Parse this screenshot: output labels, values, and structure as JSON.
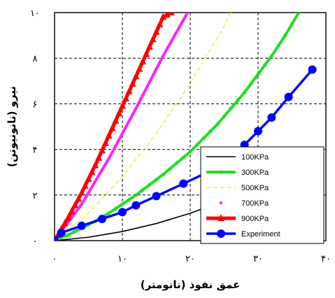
{
  "chart_data": {
    "type": "line",
    "xlabel": "عمق نفوذ (نانومتر)",
    "ylabel": "نیرو (نانونیوتن)",
    "xlim": [
      0,
      40
    ],
    "ylim": [
      0,
      10
    ],
    "xticks": [
      0,
      10,
      20,
      30,
      40
    ],
    "yticks": [
      0,
      2,
      4,
      6,
      8,
      10
    ],
    "xtick_labels": [
      "۰",
      "۱۰",
      "۲۰",
      "۳۰",
      "۴۰"
    ],
    "ytick_labels": [
      "۰",
      "۲",
      "۴",
      "۶",
      "۸",
      "۱۰"
    ],
    "grid": true,
    "legend_position": "lower-right",
    "series": [
      {
        "name": "100KPa",
        "color": "#000000",
        "style": "solid",
        "marker": "none",
        "x": [
          0,
          5,
          10,
          15,
          20,
          25,
          30,
          35,
          39
        ],
        "y": [
          0,
          0.15,
          0.4,
          0.75,
          1.2,
          1.75,
          2.4,
          3.2,
          3.8
        ]
      },
      {
        "name": "300KPa",
        "color": "#22dd22",
        "style": "solid",
        "marker": "circle-small",
        "x": [
          0,
          2,
          4,
          6,
          8,
          10,
          12,
          14,
          16,
          18,
          20,
          22,
          24,
          26,
          28,
          30,
          32,
          34,
          36
        ],
        "y": [
          0,
          0.25,
          0.55,
          0.85,
          1.2,
          1.6,
          2.0,
          2.45,
          2.9,
          3.4,
          3.9,
          4.5,
          5.1,
          5.8,
          6.5,
          7.3,
          8.1,
          9.0,
          10.0
        ]
      },
      {
        "name": "500KPa",
        "color": "#f4ee3a",
        "style": "dashed",
        "marker": "none",
        "x": [
          0,
          5,
          10,
          15,
          20,
          25,
          26
        ],
        "y": [
          0,
          1.2,
          2.8,
          4.7,
          6.9,
          9.4,
          10
        ]
      },
      {
        "name": "700KPa",
        "color": "#ff22ff",
        "style": "solid",
        "marker": "dot",
        "x": [
          0,
          4,
          8,
          12,
          16,
          19.6
        ],
        "y": [
          0,
          1.6,
          3.6,
          5.8,
          8.1,
          10
        ]
      },
      {
        "name": "900KPa",
        "color": "#ff0000",
        "style": "solid",
        "marker": "triangle",
        "x": [
          0,
          2,
          4,
          6,
          8,
          10,
          12,
          14,
          16,
          17.2
        ],
        "y": [
          0,
          1.0,
          2.1,
          3.3,
          4.6,
          5.9,
          7.2,
          8.5,
          9.8,
          10
        ]
      },
      {
        "name": "Experiment",
        "color": "#0000ff",
        "style": "solid",
        "marker": "circle-large",
        "x": [
          0,
          1,
          4,
          7,
          10,
          12,
          15,
          19,
          24,
          28,
          30,
          32,
          34.5,
          38
        ],
        "y": [
          0,
          0.35,
          0.65,
          0.95,
          1.25,
          1.55,
          1.95,
          2.5,
          3.2,
          4.2,
          4.8,
          5.4,
          6.3,
          7.5
        ]
      }
    ]
  }
}
